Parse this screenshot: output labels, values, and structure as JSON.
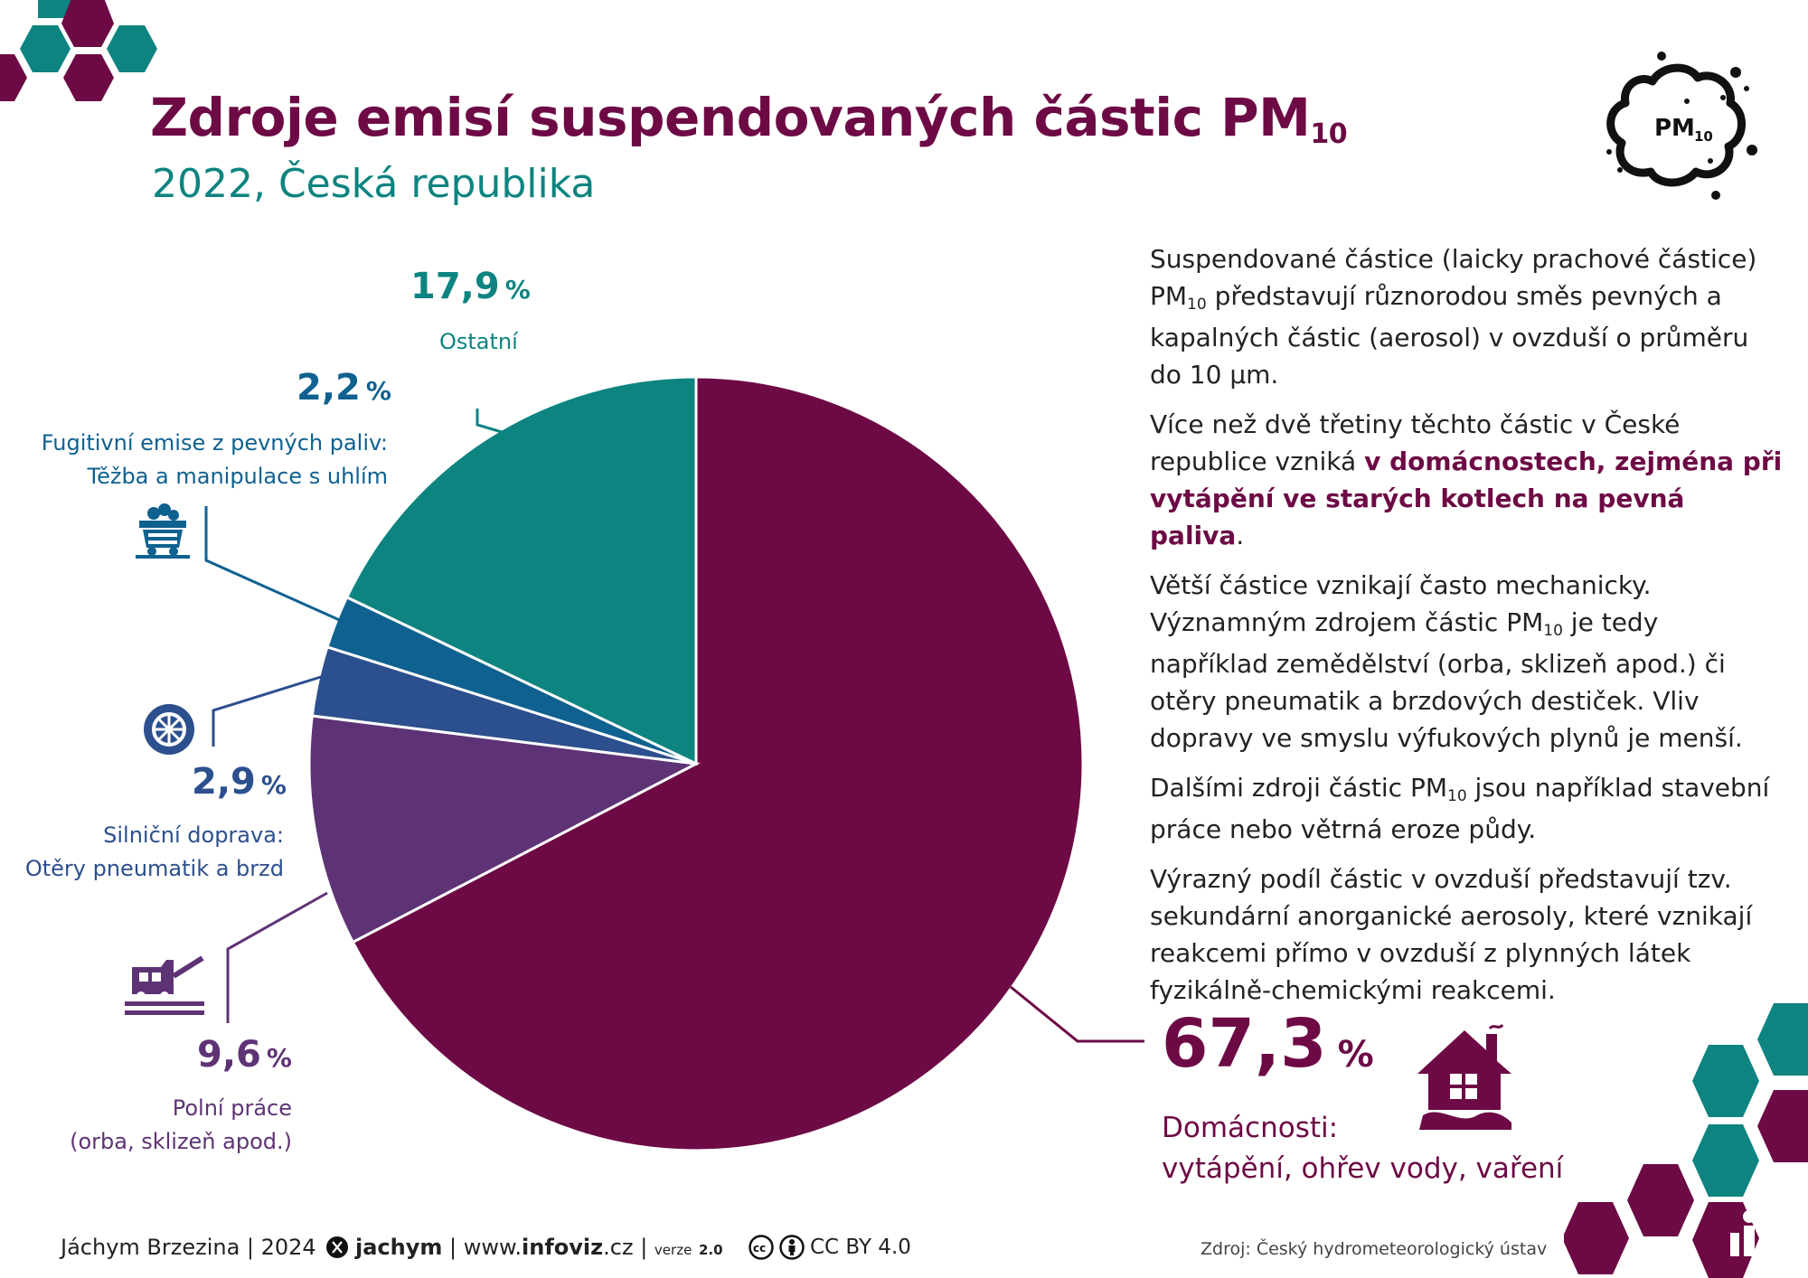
{
  "header": {
    "title": "Zdroje emisí suspendovaných částic PM",
    "title_sub": "10",
    "subtitle": "2022, Česká republika",
    "badge_label": "PM",
    "badge_sub": "10"
  },
  "colors": {
    "domacnosti": "#6d0a45",
    "polni_prace": "#5e3375",
    "silnicni_doprava": "#2c4f8e",
    "fugitivni": "#0f6190",
    "ostatni": "#0d8480"
  },
  "chart_data": {
    "type": "pie",
    "title": "Zdroje emisí suspendovaných částic PM10",
    "subtitle": "2022, Česká republika",
    "slices": [
      {
        "label": "Domácnosti: vytápění, ohřev vody, vaření",
        "value": 67.3
      },
      {
        "label": "Polní práce (orba, sklizeň apod.)",
        "value": 9.6
      },
      {
        "label": "Silniční doprava: Otěry pneumatik a brzd",
        "value": 2.9
      },
      {
        "label": "Fugitivní emise z pevných paliv: Těžba a manipulace s uhlím",
        "value": 2.2
      },
      {
        "label": "Ostatní",
        "value": 17.9
      }
    ]
  },
  "labels": {
    "ostatni": {
      "pct": "17,9",
      "unit": "%",
      "line1": "Ostatní"
    },
    "fugitivni": {
      "pct": "2,2",
      "unit": "%",
      "line1": "Fugitivní emise z pevných paliv:",
      "line2": "Těžba a manipulace s uhlím"
    },
    "doprava": {
      "pct": "2,9",
      "unit": "%",
      "line1": "Silniční doprava:",
      "line2": "Otěry pneumatik a brzd"
    },
    "polni": {
      "pct": "9,6",
      "unit": "%",
      "line1": "Polní práce",
      "line2": "(orba, sklizeň apod.)"
    },
    "domacnosti": {
      "pct": "67,3",
      "unit": "%",
      "line1": "Domácnosti:",
      "line2": "vytápění, ohřev vody, vaření"
    }
  },
  "description": {
    "p1_a": "Suspendované částice (laicky prachové částice) PM",
    "p1_sub": "10",
    "p1_b": " představují různorodou směs pevných a kapalných částic (aerosol) v ovzduší o průměru do 10 µm.",
    "p2_a": "Více než dvě třetiny těchto částic v České republice vzniká ",
    "p2_bold": "v domácnostech, zejména při vytápění ve starých kotlech na pevná paliva",
    "p2_c": ".",
    "p3_a": "Větší částice vznikají často mechanicky. Významným zdrojem částic PM",
    "p3_sub": "10",
    "p3_b": " je tedy například zemědělství (orba, sklizeň apod.) či otěry pneumatik a brzdových destiček. Vliv dopravy ve smyslu výfukových plynů je menší.",
    "p4_a": "Dalšími zdroji částic PM",
    "p4_sub": "10",
    "p4_b": " jsou například stavební práce nebo větrná eroze půdy.",
    "p5": "Výrazný podíl částic v ovzduší představují tzv. sekundární anorganické aerosoly, které vznikají reakcemi přímo v ovzduší z plynných látek fyzikálně-chemickými reakcemi."
  },
  "footer": {
    "author": "Jáchym Brzezina | 2024",
    "x_handle": "jachym",
    "site_prefix": "| www.",
    "site_bold": "infoviz",
    "site_suffix": ".cz |",
    "version_label": "verze",
    "version": "2.0",
    "license": "CC BY 4.0",
    "source": "Zdroj: Český hydrometeorologický ústav"
  },
  "icons": [
    "coal-cart-icon",
    "wheel-icon",
    "tractor-icon",
    "house-icon",
    "pm10-cloud-icon",
    "x-logo-icon",
    "cc-icon",
    "by-icon",
    "chart-bars-icon"
  ]
}
